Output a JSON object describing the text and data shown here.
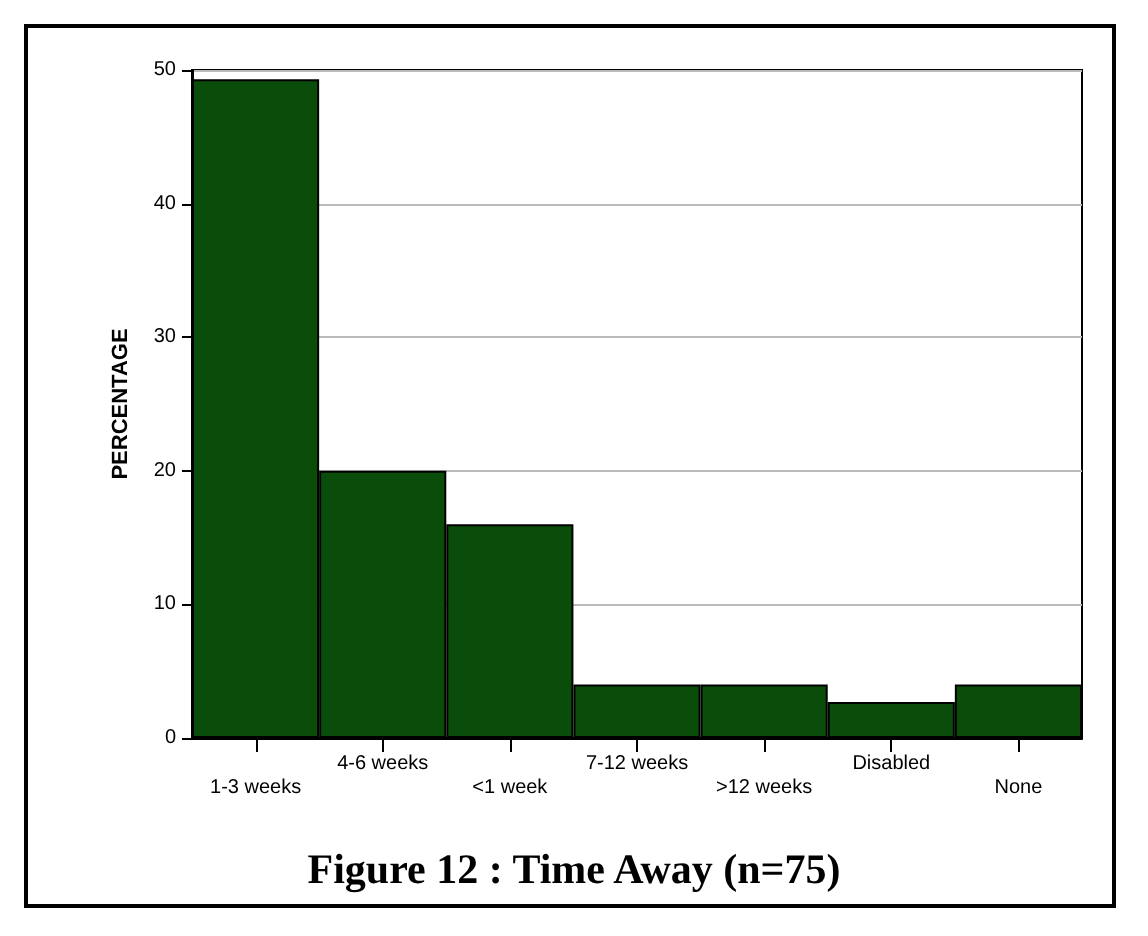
{
  "chart_data": {
    "type": "bar",
    "title": "Figure 12 : Time Away (n=75)",
    "ylabel": "PERCENTAGE",
    "categories": [
      "1-3 weeks",
      "4-6 weeks",
      "<1 week",
      "7-12 weeks",
      ">12 weeks",
      "Disabled",
      "None"
    ],
    "values": [
      49.3,
      20,
      16,
      4,
      4,
      2.7,
      4
    ],
    "color": "#0a4d0a",
    "ylim": [
      0,
      50
    ],
    "yticks": [
      0,
      10,
      20,
      30,
      40,
      50
    ],
    "grid": "y"
  }
}
